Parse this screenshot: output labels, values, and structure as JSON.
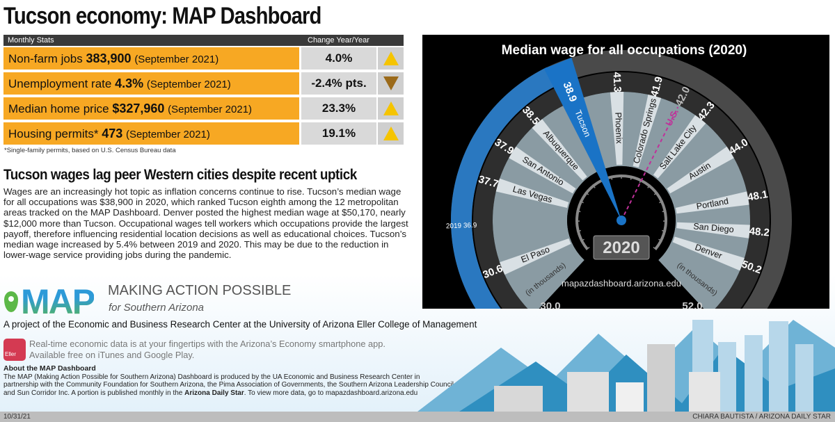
{
  "title": "Tucson economy: MAP Dashboard",
  "stats": {
    "header_label": "Monthly Stats",
    "header_change": "Change Year/Year",
    "rows": [
      {
        "label": "Non-farm jobs",
        "value": "383,900",
        "period": "(September 2021)",
        "change": "4.0%",
        "direction": "up"
      },
      {
        "label": "Unemployment rate",
        "value": "4.3%",
        "period": "(September 2021)",
        "change": "-2.4% pts.",
        "direction": "down"
      },
      {
        "label": "Median home price",
        "value": "$327,960",
        "period": "(September 2021)",
        "change": "23.3%",
        "direction": "up"
      },
      {
        "label": "Housing permits*",
        "value": "473",
        "period": "(September 2021)",
        "change": "19.1%",
        "direction": "up"
      }
    ],
    "footnote": "*Single-family permits, based on U.S. Census Bureau data",
    "colors": {
      "label_bg": "#f7a823",
      "up": "#f5c400",
      "down": "#9b6a1a"
    }
  },
  "article": {
    "headline": "Tucson wages lag peer Western cities despite recent uptick",
    "body": "Wages are an increasingly hot topic as inflation concerns continue to rise. Tucson’s median wage for all occupations was $38,900 in 2020, which ranked Tucson eighth among the 12 metropolitan areas tracked on the MAP Dashboard. Denver posted the highest median wage at $50,170, nearly $12,000 more than Tucson. Occupational wages tell workers which occupations provide the largest payoff, therefore influencing residential location decisions as well as educational choices. Tucson’s median wage increased by 5.4% between 2019 and 2020. This may be due to the reduction in lower-wage service providing jobs during the pandemic."
  },
  "chart_data": {
    "type": "gauge",
    "title": "Median wage for all occupations (2020)",
    "unit_label": "(in thousands)",
    "range": [
      30.0,
      52.0
    ],
    "range_labels": [
      "30.0",
      "52.0"
    ],
    "year": "2020",
    "source": "mapazdashboard.arizona.edu",
    "highlight": {
      "name": "Tucson",
      "value": 38.9,
      "color": "#1a73c6",
      "prior_year": "2019",
      "prior_value": 36.9
    },
    "reference": {
      "name": "U.S.",
      "value": 42.0,
      "color": "#c0309a"
    },
    "series": [
      {
        "name": "El Paso",
        "value": 30.6
      },
      {
        "name": "Las Vegas",
        "value": 37.7
      },
      {
        "name": "San Antonio",
        "value": 37.9
      },
      {
        "name": "Albuquerque",
        "value": 38.5
      },
      {
        "name": "Tucson",
        "value": 38.9
      },
      {
        "name": "Phoenix",
        "value": 41.3
      },
      {
        "name": "Colorado Springs",
        "value": 41.9
      },
      {
        "name": "Salt Lake City",
        "value": 42.3
      },
      {
        "name": "Austin",
        "value": 44.0
      },
      {
        "name": "Portland",
        "value": 48.1
      },
      {
        "name": "San Diego",
        "value": 48.2
      },
      {
        "name": "Denver",
        "value": 50.2
      }
    ]
  },
  "map": {
    "logo": "MAP",
    "name": "MAKING ACTION POSSIBLE",
    "sub": "for Southern Arizona",
    "project": "A project of the Economic and Business Research Center at the University of Arizona Eller College of Management",
    "app_icon_text": "Eller",
    "app_line1": "Real-time economic data is at your fingertips with the Arizona’s Economy smartphone app.",
    "app_line2": "Available free on iTunes and Google Play.",
    "about_title": "About the MAP Dashboard",
    "about_text": "The MAP (Making Action Possible for Southern Arizona) Dashboard is produced by the UA Economic and Business Research Center in partnership with the Community Foundation for Southern Arizona, the Pima Association of Governments, the Southern Arizona Leadership Council, and Sun Corridor Inc. A portion is published monthly in the",
    "about_bold": "Arizona Daily Star",
    "about_end": ". To view more data, go to mapazdashboard.arizona.edu"
  },
  "footer": {
    "date": "10/31/21",
    "credit": "CHIARA BAUTISTA / ARIZONA DAILY STAR"
  }
}
